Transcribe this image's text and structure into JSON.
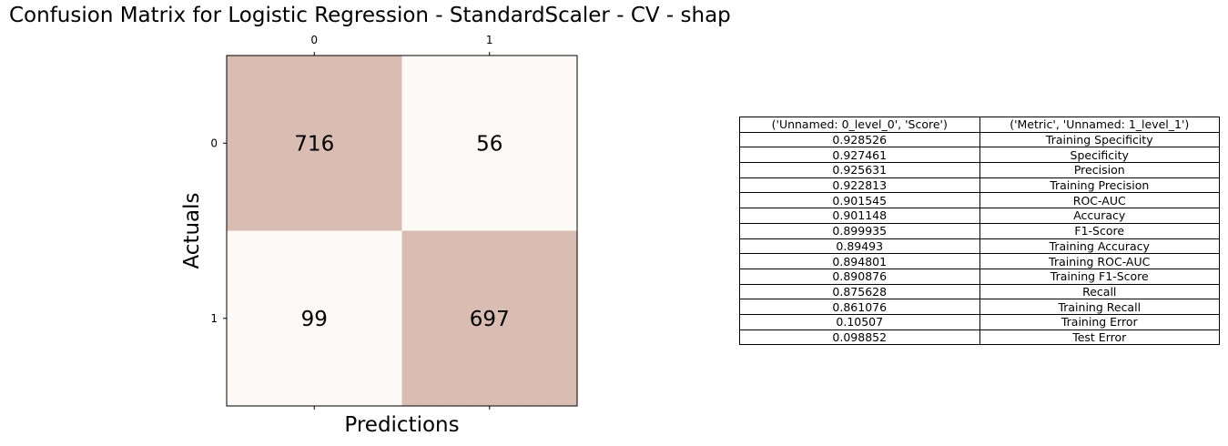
{
  "title": "Confusion Matrix for Logistic Regression - StandardScaler - CV - shap",
  "colors": {
    "high": "#d9bdb2",
    "low": "#fdf9f6"
  },
  "chart_data": [
    {
      "type": "heatmap",
      "x_categories": [
        "0",
        "1"
      ],
      "y_categories": [
        "0",
        "1"
      ],
      "xlabel": "Predictions",
      "ylabel": "Actuals",
      "values": [
        [
          716,
          56
        ],
        [
          99,
          697
        ]
      ]
    },
    {
      "type": "table",
      "columns": [
        "('Unnamed: 0_level_0', 'Score')",
        "('Metric', 'Unnamed: 1_level_1')"
      ],
      "rows": [
        [
          "0.928526",
          "Training Specificity"
        ],
        [
          "0.927461",
          "Specificity"
        ],
        [
          "0.925631",
          "Precision"
        ],
        [
          "0.922813",
          "Training Precision"
        ],
        [
          "0.901545",
          "ROC-AUC"
        ],
        [
          "0.901148",
          "Accuracy"
        ],
        [
          "0.899935",
          "F1-Score"
        ],
        [
          "0.89493",
          "Training Accuracy"
        ],
        [
          "0.894801",
          "Training ROC-AUC"
        ],
        [
          "0.890876",
          "Training F1-Score"
        ],
        [
          "0.875628",
          "Recall"
        ],
        [
          "0.861076",
          "Training Recall"
        ],
        [
          "0.10507",
          "Training Error"
        ],
        [
          "0.098852",
          "Test Error"
        ]
      ]
    }
  ]
}
